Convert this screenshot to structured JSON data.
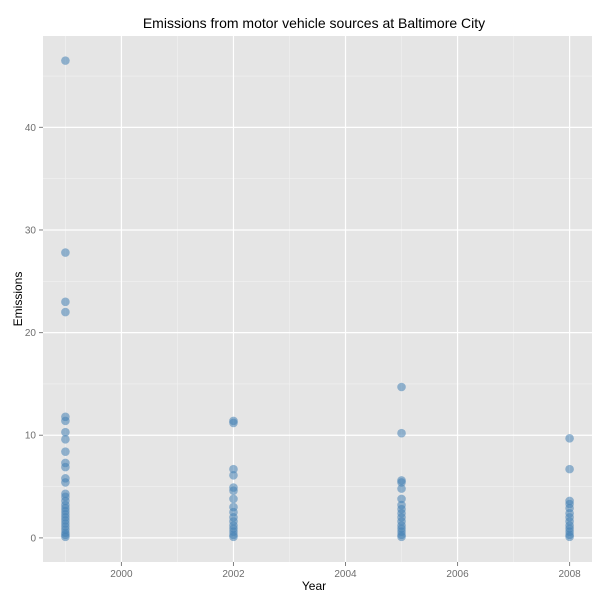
{
  "chart_data": {
    "type": "scatter",
    "title": "Emissions from motor vehicle sources at Baltimore City",
    "xlabel": "Year",
    "ylabel": "Emissions",
    "xlim": [
      1998.6,
      2008.4
    ],
    "ylim": [
      -2.35,
      48.9
    ],
    "x_ticks": [
      2000,
      2002,
      2004,
      2006,
      2008
    ],
    "x_tick_labels": [
      "2000",
      "2002",
      "2004",
      "2006",
      "2008"
    ],
    "y_ticks": [
      0,
      10,
      20,
      30,
      40
    ],
    "y_tick_labels": [
      "0",
      "10",
      "20",
      "30",
      "40"
    ],
    "grid": true,
    "panel_color": "#e5e5e5",
    "grid_color": "#ffffff",
    "point_color": "#4682b4",
    "point_alpha": 0.55,
    "series": [
      {
        "name": "Emissions",
        "points": [
          {
            "x": 1999,
            "y": 46.5
          },
          {
            "x": 1999,
            "y": 27.8
          },
          {
            "x": 1999,
            "y": 23.0
          },
          {
            "x": 1999,
            "y": 22.0
          },
          {
            "x": 1999,
            "y": 11.8
          },
          {
            "x": 1999,
            "y": 11.4
          },
          {
            "x": 1999,
            "y": 10.3
          },
          {
            "x": 1999,
            "y": 9.6
          },
          {
            "x": 1999,
            "y": 8.4
          },
          {
            "x": 1999,
            "y": 7.3
          },
          {
            "x": 1999,
            "y": 6.9
          },
          {
            "x": 1999,
            "y": 5.8
          },
          {
            "x": 1999,
            "y": 5.4
          },
          {
            "x": 1999,
            "y": 4.3
          },
          {
            "x": 1999,
            "y": 4.0
          },
          {
            "x": 1999,
            "y": 3.6
          },
          {
            "x": 1999,
            "y": 3.2
          },
          {
            "x": 1999,
            "y": 2.9
          },
          {
            "x": 1999,
            "y": 2.6
          },
          {
            "x": 1999,
            "y": 2.3
          },
          {
            "x": 1999,
            "y": 2.0
          },
          {
            "x": 1999,
            "y": 1.7
          },
          {
            "x": 1999,
            "y": 1.4
          },
          {
            "x": 1999,
            "y": 1.1
          },
          {
            "x": 1999,
            "y": 0.8
          },
          {
            "x": 1999,
            "y": 0.5
          },
          {
            "x": 1999,
            "y": 0.3
          },
          {
            "x": 1999,
            "y": 0.1
          },
          {
            "x": 2002,
            "y": 11.4
          },
          {
            "x": 2002,
            "y": 11.2
          },
          {
            "x": 2002,
            "y": 6.7
          },
          {
            "x": 2002,
            "y": 6.1
          },
          {
            "x": 2002,
            "y": 4.9
          },
          {
            "x": 2002,
            "y": 4.6
          },
          {
            "x": 2002,
            "y": 3.8
          },
          {
            "x": 2002,
            "y": 3.0
          },
          {
            "x": 2002,
            "y": 2.5
          },
          {
            "x": 2002,
            "y": 2.0
          },
          {
            "x": 2002,
            "y": 1.6
          },
          {
            "x": 2002,
            "y": 1.2
          },
          {
            "x": 2002,
            "y": 0.9
          },
          {
            "x": 2002,
            "y": 0.6
          },
          {
            "x": 2002,
            "y": 0.3
          },
          {
            "x": 2002,
            "y": 0.1
          },
          {
            "x": 2005,
            "y": 14.7
          },
          {
            "x": 2005,
            "y": 10.2
          },
          {
            "x": 2005,
            "y": 5.6
          },
          {
            "x": 2005,
            "y": 5.4
          },
          {
            "x": 2005,
            "y": 4.8
          },
          {
            "x": 2005,
            "y": 3.8
          },
          {
            "x": 2005,
            "y": 3.2
          },
          {
            "x": 2005,
            "y": 2.8
          },
          {
            "x": 2005,
            "y": 2.4
          },
          {
            "x": 2005,
            "y": 2.0
          },
          {
            "x": 2005,
            "y": 1.6
          },
          {
            "x": 2005,
            "y": 1.2
          },
          {
            "x": 2005,
            "y": 0.9
          },
          {
            "x": 2005,
            "y": 0.6
          },
          {
            "x": 2005,
            "y": 0.3
          },
          {
            "x": 2005,
            "y": 0.1
          },
          {
            "x": 2008,
            "y": 9.7
          },
          {
            "x": 2008,
            "y": 6.7
          },
          {
            "x": 2008,
            "y": 3.6
          },
          {
            "x": 2008,
            "y": 3.3
          },
          {
            "x": 2008,
            "y": 2.9
          },
          {
            "x": 2008,
            "y": 2.4
          },
          {
            "x": 2008,
            "y": 2.0
          },
          {
            "x": 2008,
            "y": 1.6
          },
          {
            "x": 2008,
            "y": 1.2
          },
          {
            "x": 2008,
            "y": 0.9
          },
          {
            "x": 2008,
            "y": 0.6
          },
          {
            "x": 2008,
            "y": 0.3
          },
          {
            "x": 2008,
            "y": 0.1
          }
        ]
      }
    ]
  }
}
